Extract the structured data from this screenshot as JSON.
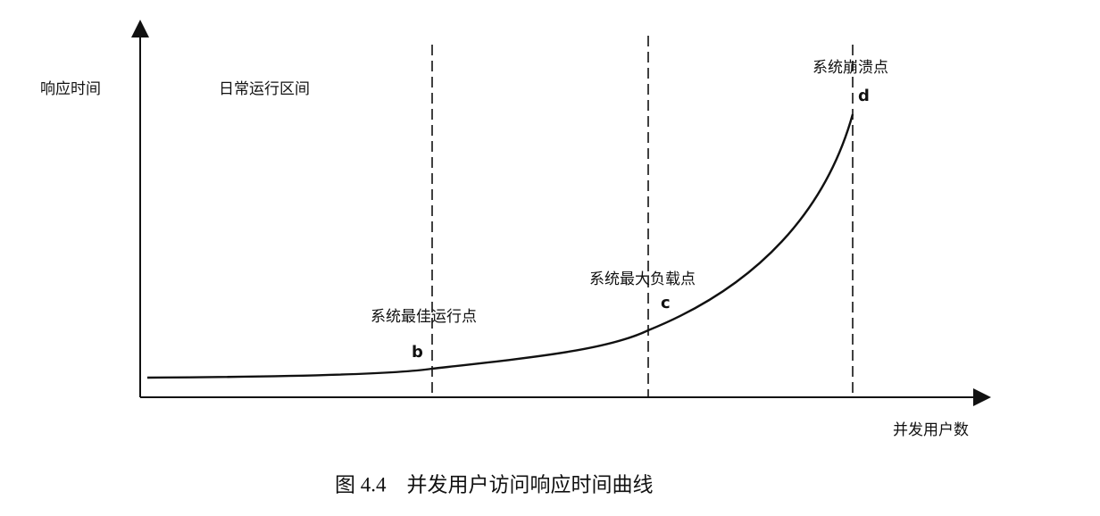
{
  "axes": {
    "y_label": "响应时间",
    "x_label": "并发用户数"
  },
  "region_label": "日常运行区间",
  "points": [
    {
      "name": "b",
      "label": "系统最佳运行点"
    },
    {
      "name": "c",
      "label": "系统最大负载点"
    },
    {
      "name": "d",
      "label": "系统崩溃点"
    }
  ],
  "caption": "图 4.4　并发用户访问响应时间曲线"
}
